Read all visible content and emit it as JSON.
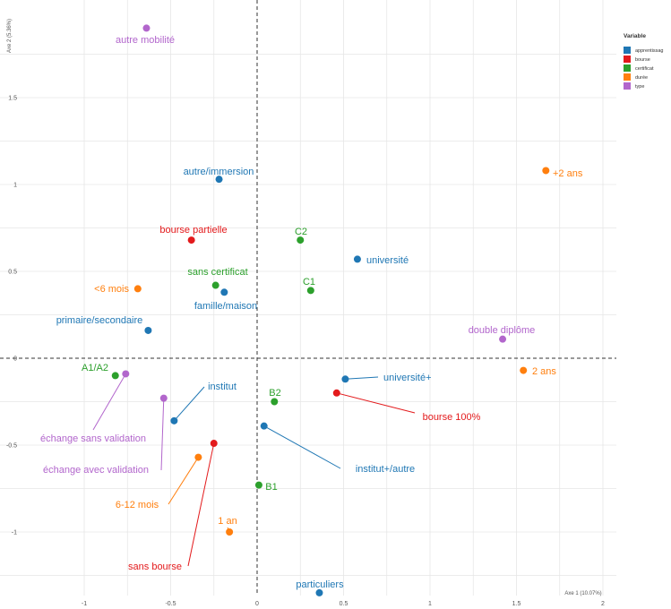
{
  "chart_data": {
    "type": "scatter",
    "xlabel": "Axe 1 (10.07%)",
    "ylabel": "Axe 2 (5.36%)",
    "xlim": [
      -1.0,
      2.0
    ],
    "ylim": [
      -1.37,
      1.93
    ],
    "xticks": [
      -1,
      -0.5,
      0,
      0.5,
      1,
      1.5,
      2
    ],
    "yticks": [
      -1,
      -0.5,
      0,
      0.5,
      1,
      1.5
    ],
    "legend": {
      "title": "Variable",
      "placement": "right",
      "items": [
        {
          "name": "apprentissag",
          "color": "#1f77b4"
        },
        {
          "name": "bourse",
          "color": "#e31a1c"
        },
        {
          "name": "certificat",
          "color": "#2ca02c"
        },
        {
          "name": "durée",
          "color": "#ff7f0e"
        },
        {
          "name": "type",
          "color": "#b266cc"
        }
      ]
    },
    "points": [
      {
        "label": "autre mobilité",
        "var": "type",
        "x": -0.64,
        "y": 1.9
      },
      {
        "label": "autre/immersion",
        "var": "apprentissag",
        "x": -0.22,
        "y": 1.03
      },
      {
        "label": "+2 ans",
        "var": "durée",
        "x": 1.67,
        "y": 1.08
      },
      {
        "label": "bourse partielle",
        "var": "bourse",
        "x": -0.38,
        "y": 0.68
      },
      {
        "label": "C2",
        "var": "certificat",
        "x": 0.25,
        "y": 0.68
      },
      {
        "label": "université",
        "var": "apprentissag",
        "x": 0.58,
        "y": 0.57
      },
      {
        "label": "sans certificat",
        "var": "certificat",
        "x": -0.24,
        "y": 0.42
      },
      {
        "label": "C1",
        "var": "certificat",
        "x": 0.31,
        "y": 0.39
      },
      {
        "label": "<6 mois",
        "var": "durée",
        "x": -0.69,
        "y": 0.4
      },
      {
        "label": "famille/maison",
        "var": "apprentissag",
        "x": -0.19,
        "y": 0.38
      },
      {
        "label": "primaire/secondaire",
        "var": "apprentissag",
        "x": -0.63,
        "y": 0.16
      },
      {
        "label": "double diplôme",
        "var": "type",
        "x": 1.42,
        "y": 0.11
      },
      {
        "label": "A1/A2",
        "var": "certificat",
        "x": -0.82,
        "y": -0.1
      },
      {
        "label": "échange sans validation",
        "var": "type",
        "x": -0.76,
        "y": -0.09
      },
      {
        "label": "2 ans",
        "var": "durée",
        "x": 1.54,
        "y": -0.07
      },
      {
        "label": "université+",
        "var": "apprentissag",
        "x": 0.51,
        "y": -0.12
      },
      {
        "label": "bourse 100%",
        "var": "bourse",
        "x": 0.46,
        "y": -0.2
      },
      {
        "label": "échange avec validation",
        "var": "type",
        "x": -0.54,
        "y": -0.23
      },
      {
        "label": "B2",
        "var": "certificat",
        "x": 0.1,
        "y": -0.25
      },
      {
        "label": "institut",
        "var": "apprentissag",
        "x": -0.48,
        "y": -0.36
      },
      {
        "label": "institut+/autre",
        "var": "apprentissag",
        "x": 0.04,
        "y": -0.39
      },
      {
        "label": "sans bourse",
        "var": "bourse",
        "x": -0.25,
        "y": -0.49
      },
      {
        "label": "6-12 mois",
        "var": "durée",
        "x": -0.34,
        "y": -0.57
      },
      {
        "label": "B1",
        "var": "certificat",
        "x": 0.01,
        "y": -0.73
      },
      {
        "label": "1 an",
        "var": "durée",
        "x": -0.16,
        "y": -1.0
      },
      {
        "label": "particuliers",
        "var": "apprentissag",
        "x": 0.36,
        "y": -1.35
      }
    ]
  }
}
